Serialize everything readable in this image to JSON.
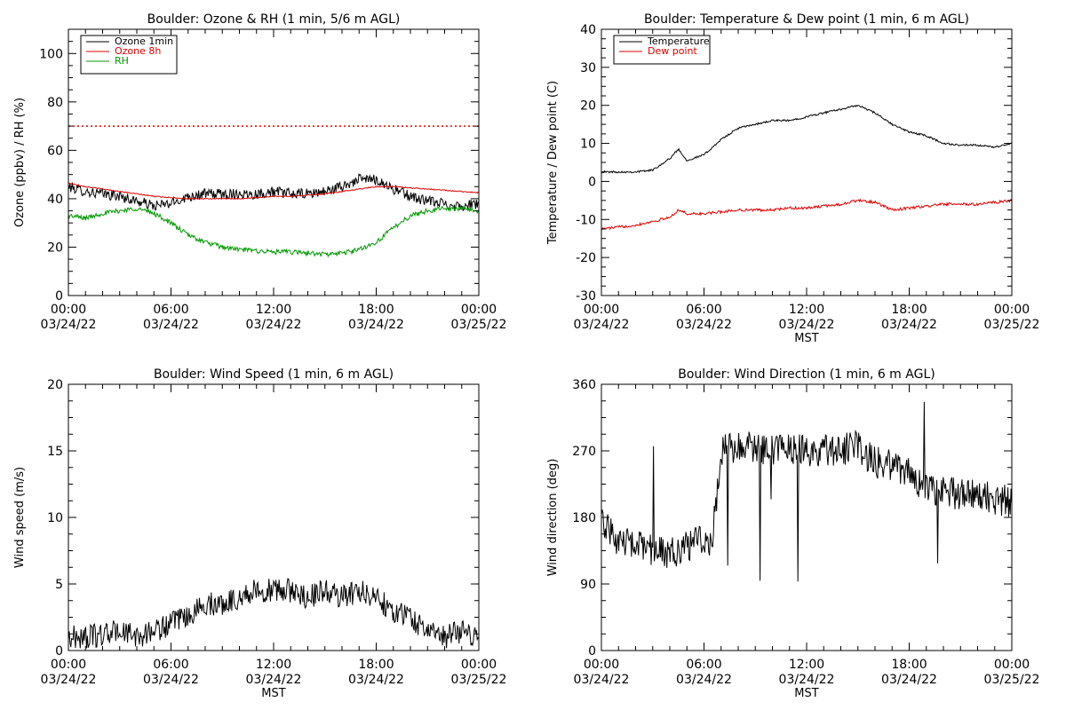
{
  "chart_data": [
    {
      "type": "line",
      "title": "Boulder: Ozone & RH (1 min, 5/6 m AGL)",
      "xlabel": "",
      "ylabel": "Ozone (ppbv) / RH (%)",
      "xlim_hours": [
        0,
        24
      ],
      "ylim": [
        0,
        110
      ],
      "yticks": [
        0,
        20,
        40,
        60,
        80,
        100
      ],
      "xtick_times": [
        "00:00",
        "06:00",
        "12:00",
        "18:00",
        "00:00"
      ],
      "xtick_dates": [
        "03/24/22",
        "03/24/22",
        "03/24/22",
        "03/24/22",
        "03/25/22"
      ],
      "legend": "top-left",
      "reference_line": {
        "value": 70,
        "color": "#e00000",
        "style": "dotted"
      },
      "series": [
        {
          "name": "Ozone 1min",
          "color": "#000000",
          "noise": 2.2,
          "x": [
            0,
            1,
            2,
            3,
            4,
            5,
            6,
            7,
            8,
            9,
            10,
            11,
            12,
            13,
            14,
            15,
            16,
            17,
            18,
            19,
            20,
            21,
            22,
            23,
            24
          ],
          "values": [
            45,
            43,
            42,
            41,
            39,
            37,
            38,
            41,
            42,
            42,
            42,
            42,
            43,
            42,
            42,
            43,
            45,
            48,
            48,
            44,
            41,
            39,
            38,
            37,
            38
          ]
        },
        {
          "name": "Ozone 8h",
          "color": "#e00000",
          "noise": 0.2,
          "x": [
            0,
            1,
            2,
            3,
            4,
            5,
            6,
            7,
            8,
            9,
            10,
            11,
            12,
            13,
            14,
            15,
            16,
            17,
            18,
            19,
            20,
            21,
            22,
            23,
            24
          ],
          "values": [
            46.5,
            45,
            44,
            43,
            42,
            41,
            40.5,
            40,
            40,
            40,
            40,
            40.5,
            41,
            41,
            41.5,
            42,
            43,
            44,
            45,
            45,
            44.5,
            44,
            43.5,
            43,
            42.5
          ]
        },
        {
          "name": "RH",
          "color": "#009900",
          "noise": 1.0,
          "x": [
            0,
            1,
            2,
            3,
            4,
            5,
            6,
            7,
            8,
            9,
            10,
            11,
            12,
            13,
            14,
            15,
            16,
            17,
            18,
            19,
            20,
            21,
            22,
            23,
            24
          ],
          "values": [
            33,
            32,
            34,
            35,
            36,
            34,
            30,
            25,
            22,
            20,
            19,
            18.5,
            18,
            18,
            17.5,
            17,
            17.5,
            19,
            22,
            28,
            33,
            35,
            36,
            36,
            35
          ]
        }
      ]
    },
    {
      "type": "line",
      "title": "Boulder: Temperature & Dew point (1 min, 6 m AGL)",
      "xlabel": "MST",
      "ylabel": "Temperature / Dew point (C)",
      "xlim_hours": [
        0,
        24
      ],
      "ylim": [
        -30,
        40
      ],
      "yticks": [
        -30,
        -20,
        -10,
        0,
        10,
        20,
        30,
        40
      ],
      "xtick_times": [
        "00:00",
        "06:00",
        "12:00",
        "18:00",
        "00:00"
      ],
      "xtick_dates": [
        "03/24/22",
        "03/24/22",
        "03/24/22",
        "03/24/22",
        "03/25/22"
      ],
      "legend": "top-left",
      "series": [
        {
          "name": "Temperature",
          "color": "#000000",
          "noise": 0.25,
          "x": [
            0,
            1,
            2,
            3,
            4,
            4.5,
            5,
            6,
            7,
            8,
            9,
            10,
            11,
            12,
            13,
            14,
            15,
            16,
            17,
            18,
            19,
            20,
            21,
            22,
            23,
            24
          ],
          "values": [
            2.5,
            2.5,
            2.5,
            3,
            6,
            8.5,
            5.5,
            7,
            11,
            14,
            15,
            16,
            16,
            17,
            18,
            19,
            20,
            18,
            15,
            13,
            12,
            10,
            9.5,
            9.5,
            9,
            10
          ]
        },
        {
          "name": "Dew point",
          "color": "#e00000",
          "noise": 0.35,
          "x": [
            0,
            1,
            2,
            3,
            4,
            4.5,
            5,
            6,
            7,
            8,
            9,
            10,
            11,
            12,
            13,
            14,
            15,
            16,
            17,
            18,
            19,
            20,
            21,
            22,
            23,
            24
          ],
          "values": [
            -12.5,
            -12,
            -11.5,
            -10.5,
            -9.5,
            -7.5,
            -8.5,
            -8.5,
            -8,
            -7.5,
            -7.5,
            -7.5,
            -7,
            -7,
            -6.5,
            -6,
            -5,
            -5.5,
            -7.5,
            -7,
            -6.5,
            -6,
            -6,
            -6,
            -5.5,
            -5
          ]
        }
      ]
    },
    {
      "type": "line",
      "title": "Boulder: Wind Speed (1 min, 6 m AGL)",
      "xlabel": "MST",
      "ylabel": "Wind speed (m/s)",
      "xlim_hours": [
        0,
        24
      ],
      "ylim": [
        0,
        20
      ],
      "yticks": [
        0,
        5,
        10,
        15,
        20
      ],
      "xtick_times": [
        "00:00",
        "06:00",
        "12:00",
        "18:00",
        "00:00"
      ],
      "xtick_dates": [
        "03/24/22",
        "03/24/22",
        "03/24/22",
        "03/24/22",
        "03/25/22"
      ],
      "series": [
        {
          "name": "",
          "color": "#000000",
          "noise": 0.9,
          "x": [
            0,
            1,
            2,
            3,
            4,
            5,
            6,
            7,
            8,
            9,
            10,
            11,
            12,
            13,
            14,
            15,
            16,
            17,
            18,
            19,
            20,
            21,
            22,
            23,
            24
          ],
          "values": [
            1,
            1,
            1.2,
            1.5,
            1,
            1.5,
            2,
            2.5,
            3.5,
            3.5,
            4,
            4.5,
            4.5,
            4.5,
            4,
            4.5,
            4,
            4.5,
            4,
            3,
            2.5,
            1.5,
            1,
            1.5,
            1
          ]
        }
      ]
    },
    {
      "type": "line",
      "title": "Boulder: Wind Direction (1 min, 6 m AGL)",
      "xlabel": "MST",
      "ylabel": "Wind direction (deg)",
      "xlim_hours": [
        0,
        24
      ],
      "ylim": [
        0,
        360
      ],
      "yticks": [
        0,
        90,
        180,
        270,
        360
      ],
      "xtick_times": [
        "00:00",
        "06:00",
        "12:00",
        "18:00",
        "00:00"
      ],
      "xtick_dates": [
        "03/24/22",
        "03/24/22",
        "03/24/22",
        "03/24/22",
        "03/25/22"
      ],
      "series": [
        {
          "name": "",
          "color": "#000000",
          "noise": 22,
          "x": [
            0,
            1,
            2,
            3,
            4,
            5,
            6,
            6.5,
            7,
            8,
            9,
            10,
            11,
            12,
            13,
            14,
            15,
            16,
            17,
            18,
            19,
            20,
            21,
            22,
            23,
            24
          ],
          "values": [
            170,
            150,
            140,
            135,
            130,
            140,
            150,
            150,
            270,
            275,
            275,
            270,
            272,
            270,
            270,
            272,
            275,
            255,
            250,
            240,
            215,
            215,
            210,
            215,
            205,
            200
          ]
        }
      ]
    }
  ]
}
